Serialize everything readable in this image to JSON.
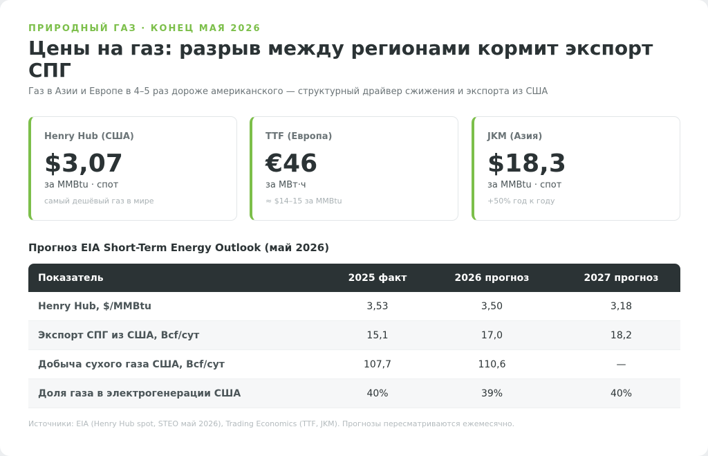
{
  "eyebrow": "ПРИРОДНЫЙ ГАЗ · КОНЕЦ МАЯ 2026",
  "title": "Цены на газ: разрыв между регионами кормит экспорт СПГ",
  "subtitle": "Газ в Азии и Европе в 4–5 раз дороже американского — структурный драйвер сжижения и экспорта из США",
  "kpis": [
    {
      "label": "Henry Hub (США)",
      "value": "$3,07",
      "unit": "за MMBtu · спот",
      "note": "самый дешёвый газ в мире"
    },
    {
      "label": "TTF (Европа)",
      "value": "€46",
      "unit": "за МВт·ч",
      "note": "≈ $14–15 за MMBtu"
    },
    {
      "label": "JKM (Азия)",
      "value": "$18,3",
      "unit": "за MMBtu · спот",
      "note": "+50% год к году"
    }
  ],
  "accent_color": "#7cbf4a",
  "header_color": "#2b3335",
  "table": {
    "title": "Прогноз EIA Short-Term Energy Outlook (май 2026)",
    "headers": [
      "Показатель",
      "2025 факт",
      "2026 прогноз",
      "2027 прогноз"
    ],
    "rows": [
      [
        "Henry Hub, $/MMBtu",
        "3,53",
        "3,50",
        "3,18"
      ],
      [
        "Экспорт СПГ из США, Bcf/сут",
        "15,1",
        "17,0",
        "18,2"
      ],
      [
        "Добыча сухого газа США, Bcf/сут",
        "107,7",
        "110,6",
        "—"
      ],
      [
        "Доля газа в электрогенерации США",
        "40%",
        "39%",
        "40%"
      ]
    ]
  },
  "footer": "Источники: EIA (Henry Hub spot, STEO май 2026), Trading Economics (TTF, JKM). Прогнозы пересматриваются ежемесячно."
}
